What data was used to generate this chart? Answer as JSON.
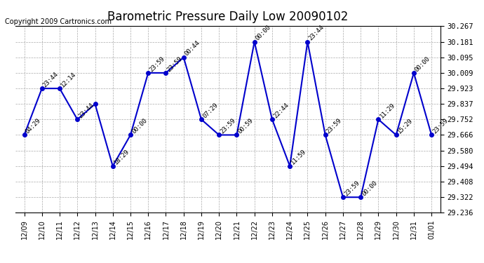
{
  "title": "Barometric Pressure Daily Low 20090102",
  "copyright": "Copyright 2009 Cartronics.com",
  "x_labels": [
    "12/09",
    "12/10",
    "12/11",
    "12/12",
    "12/13",
    "12/14",
    "12/15",
    "12/16",
    "12/17",
    "12/18",
    "12/19",
    "12/20",
    "12/21",
    "12/22",
    "12/23",
    "12/24",
    "12/25",
    "12/26",
    "12/27",
    "12/28",
    "12/29",
    "12/30",
    "12/31",
    "01/01"
  ],
  "y_values": [
    29.666,
    29.923,
    29.923,
    29.752,
    29.837,
    29.494,
    29.666,
    30.009,
    30.009,
    30.095,
    29.752,
    29.666,
    29.666,
    30.181,
    29.752,
    29.494,
    30.181,
    29.666,
    29.322,
    29.322,
    29.752,
    29.666,
    30.009,
    29.666
  ],
  "point_labels": [
    "04:29",
    "23:44",
    "12:14",
    "23:44",
    "",
    "18:29",
    "00:00",
    "23:59",
    "23:59",
    "00:44",
    "07:29",
    "23:59",
    "00:59",
    "00:00",
    "22:44",
    "11:59",
    "23:44",
    "23:59",
    "23:59",
    "00:00",
    "11:29",
    "15:29",
    "00:00",
    "23:59"
  ],
  "line_color": "#0000CC",
  "marker_color": "#0000CC",
  "bg_color": "#FFFFFF",
  "grid_color": "#AAAAAA",
  "ylim_min": 29.236,
  "ylim_max": 30.267,
  "yticks": [
    29.236,
    29.322,
    29.408,
    29.494,
    29.58,
    29.666,
    29.752,
    29.837,
    29.923,
    30.009,
    30.095,
    30.181,
    30.267
  ]
}
